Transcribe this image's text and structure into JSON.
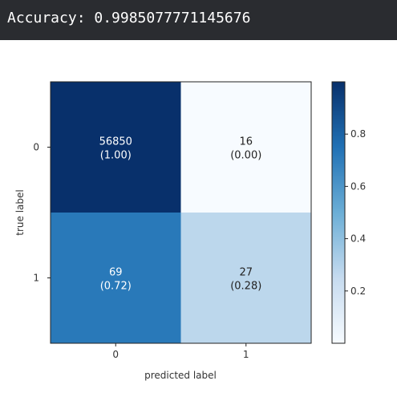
{
  "output": {
    "accuracy_text": "Accuracy: 0.9985077771145676"
  },
  "chart_data": {
    "type": "heatmap",
    "title": "",
    "xlabel": "predicted label",
    "ylabel": "true label",
    "x_ticks": [
      "0",
      "1"
    ],
    "y_ticks": [
      "0",
      "1"
    ],
    "counts": [
      [
        56850,
        16
      ],
      [
        69,
        27
      ]
    ],
    "normalized": [
      [
        1.0,
        0.0
      ],
      [
        0.72,
        0.28
      ]
    ],
    "cells": [
      [
        {
          "count": "56850",
          "ratio": "(1.00)"
        },
        {
          "count": "16",
          "ratio": "(0.00)"
        }
      ],
      [
        {
          "count": "69",
          "ratio": "(0.72)"
        },
        {
          "count": "27",
          "ratio": "(0.28)"
        }
      ]
    ],
    "colormap": "Blues",
    "colorbar": {
      "range": [
        0,
        1
      ],
      "ticks": [
        "0.8",
        "0.6",
        "0.4",
        "0.2"
      ],
      "tick_values": [
        0.8,
        0.6,
        0.4,
        0.2
      ]
    },
    "grid": false,
    "legend": "colorbar-right"
  },
  "colors": {
    "output_bg": "#2a2c30",
    "cell_dark_text": "#ffffff",
    "cell_light_text": "#222222"
  }
}
